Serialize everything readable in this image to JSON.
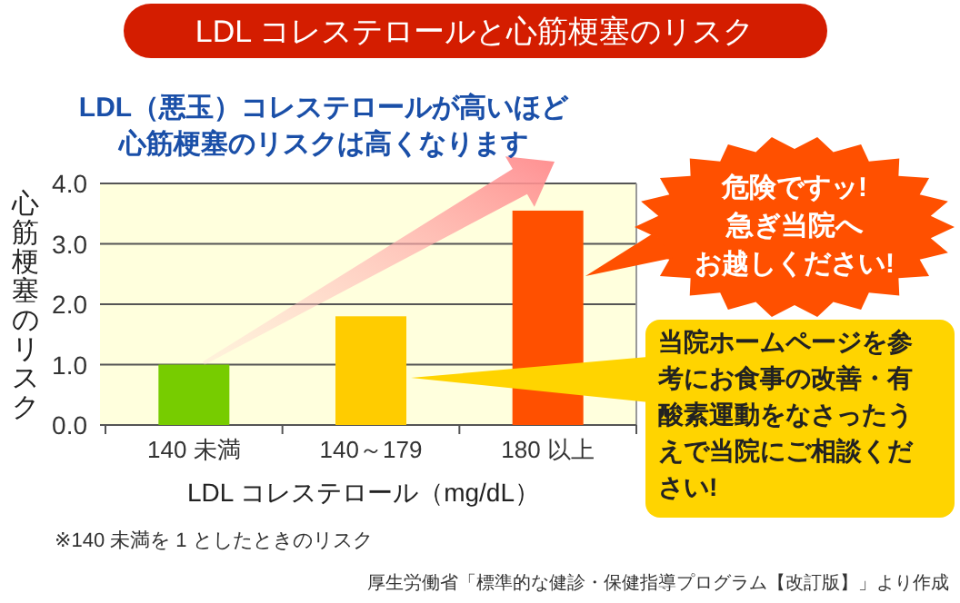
{
  "chart_data": {
    "type": "bar",
    "title": "LDL コレステロールと心筋梗塞のリスク",
    "xlabel": "LDL コレステロール（mg/dL）",
    "ylabel": "心筋梗塞のリスク",
    "categories": [
      "140 未満",
      "140～179",
      "180 以上"
    ],
    "values": [
      1.0,
      1.8,
      3.55
    ],
    "colors": [
      "#77cc00",
      "#ffcc00",
      "#ff5000"
    ],
    "ylim": [
      0,
      4.0
    ],
    "yticks": [
      {
        "value": 0,
        "label": "0.0"
      },
      {
        "value": 1,
        "label": "1.0"
      },
      {
        "value": 2,
        "label": "2.0"
      },
      {
        "value": 3,
        "label": "3.0"
      },
      {
        "value": 4,
        "label": "4.0"
      }
    ],
    "grid": "y",
    "annotations": [
      "LDL（悪玉）コレステロールが高いほど心筋梗塞のリスクは高くなります",
      "危険ですッ!急ぎ当院へお越しください!",
      "当院ホームページを参考にお食事の改善・有酸素運動をなさったうえで当院にご相談ください!",
      "※140 未満を 1 としたときのリスク",
      "厚生労働省「標準的な健診・保健指導プログラム【改訂版】」より作成"
    ]
  }
}
